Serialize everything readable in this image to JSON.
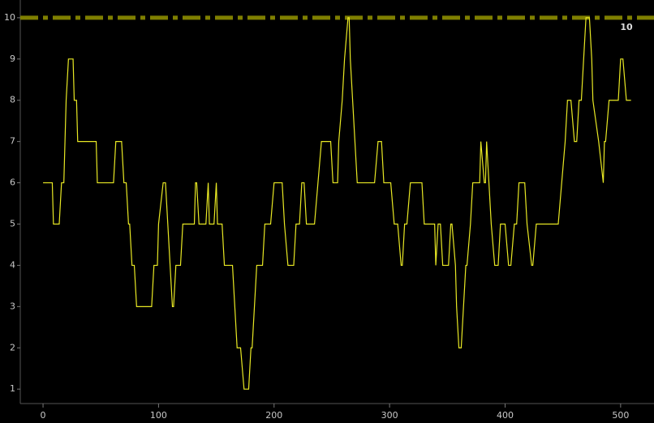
{
  "chart_data": {
    "type": "line",
    "x": [
      0,
      8,
      9,
      14,
      16,
      18,
      19,
      20,
      22,
      26,
      27,
      29,
      30,
      46,
      47,
      61,
      63,
      68,
      70,
      72,
      74,
      75,
      77,
      79,
      81,
      94,
      96,
      99,
      100,
      104,
      106,
      108,
      110,
      112,
      113,
      115,
      119,
      121,
      131,
      132,
      133,
      135,
      141,
      143,
      144,
      148,
      150,
      151,
      155,
      157,
      164,
      166,
      168,
      171,
      174,
      178,
      180,
      181,
      183,
      185,
      190,
      192,
      197,
      200,
      207,
      209,
      212,
      217,
      219,
      222,
      224,
      226,
      228,
      235,
      238,
      241,
      249,
      251,
      255,
      256,
      259,
      261,
      264,
      265,
      266,
      268,
      270,
      272,
      287,
      290,
      293,
      295,
      301,
      304,
      307,
      310,
      311,
      313,
      315,
      318,
      328,
      330,
      339,
      340,
      342,
      344,
      346,
      351,
      353,
      354,
      357,
      358,
      360,
      362,
      364,
      366,
      367,
      370,
      372,
      378,
      379,
      382,
      383,
      384,
      386,
      388,
      391,
      394,
      396,
      400,
      403,
      405,
      408,
      410,
      412,
      417,
      419,
      423,
      424,
      427,
      446,
      449,
      452,
      454,
      457,
      460,
      462,
      464,
      466,
      468,
      470,
      473,
      475,
      476,
      481,
      485,
      486,
      487,
      490,
      498,
      500,
      502,
      505,
      509
    ],
    "series": [
      {
        "color": "#e8e824",
        "values": [
          6,
          6,
          5,
          5,
          6,
          6,
          7,
          8,
          9,
          9,
          8,
          8,
          7,
          7,
          6,
          6,
          7,
          7,
          6,
          6,
          5,
          5,
          4,
          4,
          3,
          3,
          4,
          4,
          5,
          6,
          6,
          5,
          4,
          3,
          3,
          4,
          4,
          5,
          5,
          6,
          6,
          5,
          5,
          6,
          5,
          5,
          6,
          5,
          5,
          4,
          4,
          3,
          2,
          2,
          1,
          1,
          2,
          2,
          3,
          4,
          4,
          5,
          5,
          6,
          6,
          5,
          4,
          4,
          5,
          5,
          6,
          6,
          5,
          5,
          6,
          7,
          7,
          6,
          6,
          7,
          8,
          9,
          10,
          10,
          9,
          8,
          7,
          6,
          6,
          7,
          7,
          6,
          6,
          5,
          5,
          4,
          4,
          5,
          5,
          6,
          6,
          5,
          5,
          4,
          5,
          5,
          4,
          4,
          5,
          5,
          4,
          3,
          2,
          2,
          3,
          4,
          4,
          5,
          6,
          6,
          7,
          6,
          6,
          7,
          6,
          5,
          4,
          4,
          5,
          5,
          4,
          4,
          5,
          5,
          6,
          6,
          5,
          4,
          4,
          5,
          5,
          6,
          7,
          8,
          8,
          7,
          7,
          8,
          8,
          9,
          10,
          10,
          9,
          8,
          7,
          6,
          7,
          7,
          8,
          8,
          9,
          9,
          8,
          8
        ]
      }
    ],
    "reference_line": {
      "value": 10,
      "color": "#7f7f00"
    },
    "xlim": [
      -19.7,
      528.9
    ],
    "xticks": [
      0,
      100,
      200,
      300,
      400,
      500
    ],
    "ylim": [
      0.65,
      10.43
    ],
    "yticks": [
      1,
      2,
      3,
      4,
      5,
      6,
      7,
      8,
      9,
      10
    ]
  }
}
